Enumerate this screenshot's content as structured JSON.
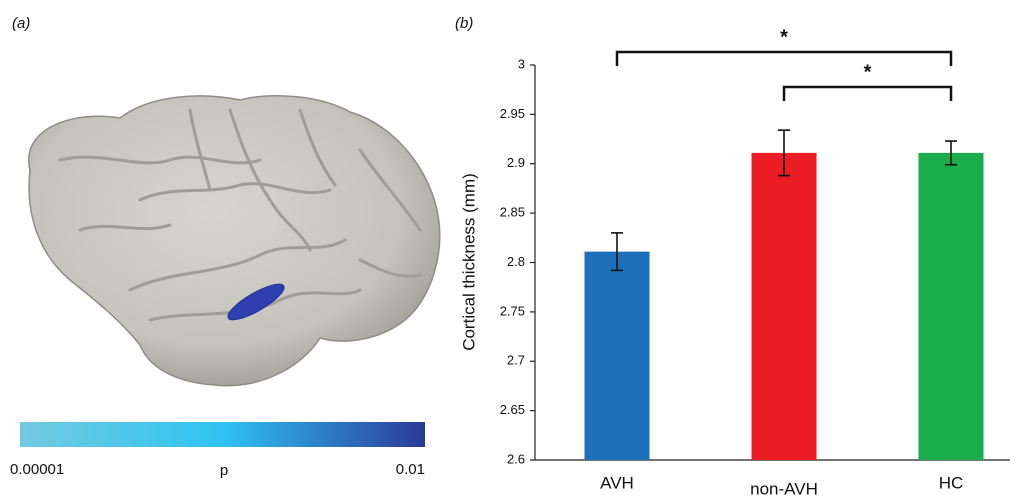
{
  "panel_a": {
    "label": "(a)",
    "colorbar": {
      "min_label": "0.00001",
      "label": "p",
      "max_label": "0.01",
      "colors": [
        "#72cbe0",
        "#2ec3f2",
        "#2b3a97"
      ]
    }
  },
  "chart_data": {
    "type": "bar",
    "panel_label": "(b)",
    "y_label": "Cortical thickness (mm)",
    "categories": [
      "AVH",
      "non-AVH",
      "HC"
    ],
    "values": [
      2.811,
      2.911,
      2.911
    ],
    "errors": [
      0.019,
      0.023,
      0.012
    ],
    "colors": [
      "#1e6fba",
      "#ec1c24",
      "#19ad4b"
    ],
    "ylim": [
      2.6,
      3
    ],
    "yticks": [
      2.6,
      2.65,
      2.7,
      2.75,
      2.8,
      2.85,
      2.9,
      2.95,
      3
    ],
    "significance": [
      {
        "from": 0,
        "to": 2,
        "label": "*"
      },
      {
        "from": 1,
        "to": 2,
        "label": "*"
      }
    ]
  }
}
